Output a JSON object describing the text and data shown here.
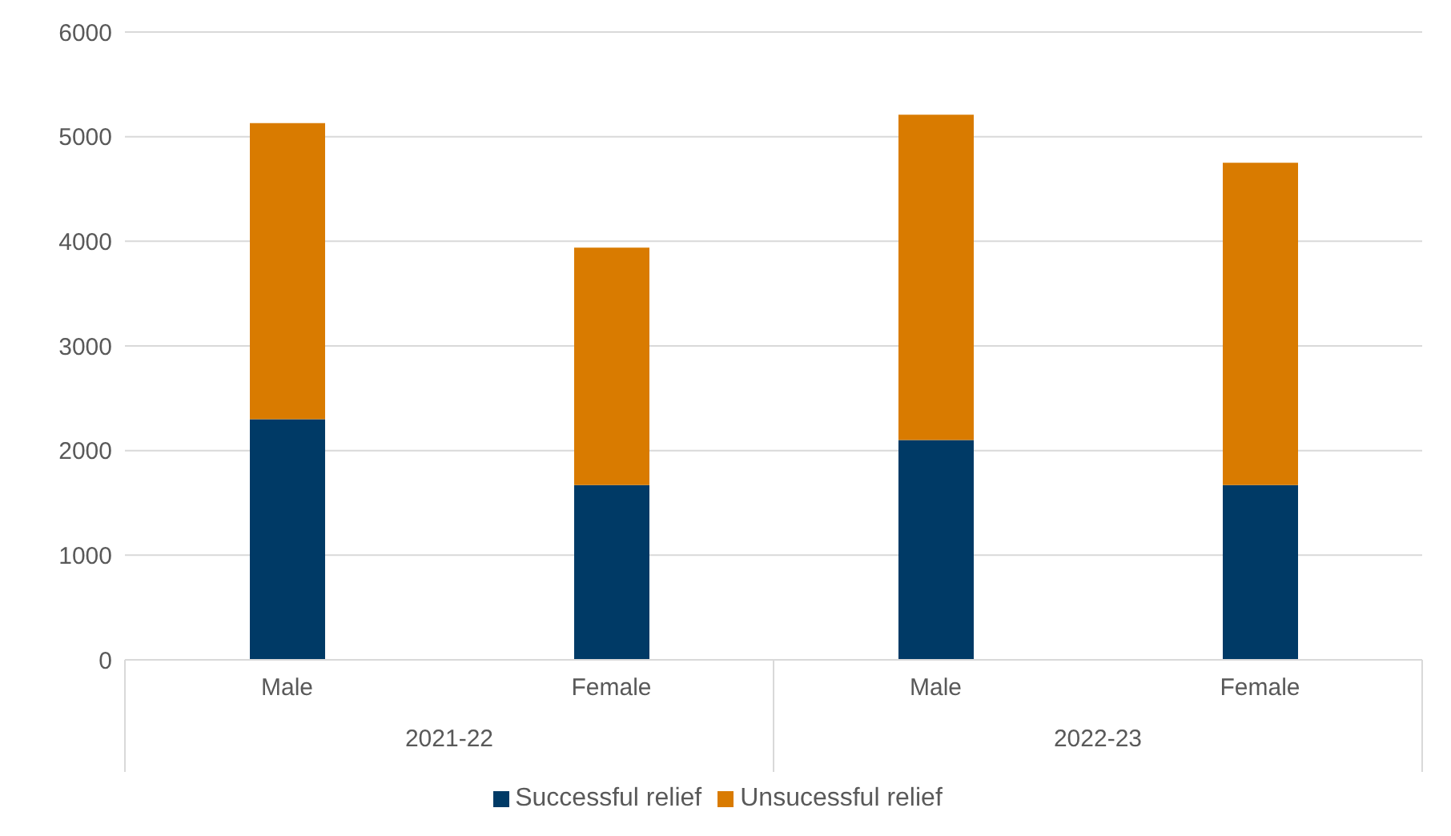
{
  "chart_data": {
    "type": "bar",
    "stacked": true,
    "categories": [
      "Male",
      "Female",
      "Male",
      "Female"
    ],
    "series": [
      {
        "name": "Successful relief",
        "color": "#003a66",
        "values": [
          2300,
          1670,
          2100,
          1670
        ]
      },
      {
        "name": "Unsucessful relief",
        "color": "#d97b00",
        "values": [
          2830,
          2270,
          3110,
          3080
        ]
      }
    ],
    "annotations": [
      "2021-22",
      "2022-23"
    ],
    "ylim": [
      0,
      6000
    ],
    "yticks": [
      0,
      1000,
      2000,
      3000,
      4000,
      5000,
      6000
    ],
    "grid": "y",
    "legend": "bottom"
  }
}
